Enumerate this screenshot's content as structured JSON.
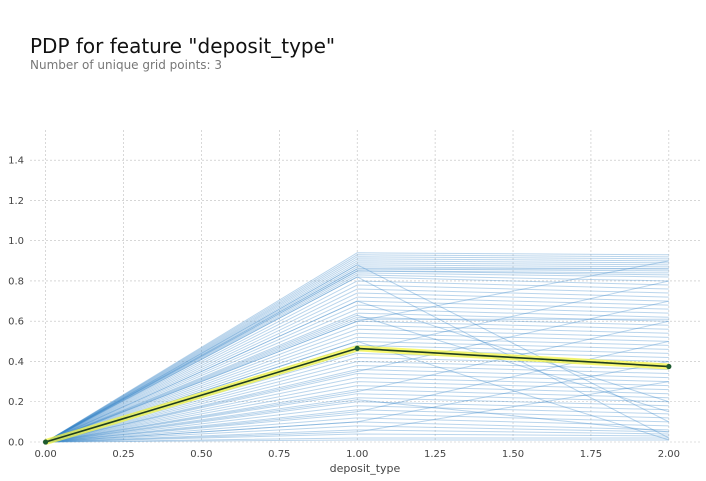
{
  "chart_data": {
    "type": "line",
    "title": "PDP for feature \"deposit_type\"",
    "subtitle": "Number of unique grid points: 3",
    "xlabel": "deposit_type",
    "ylabel": "",
    "xlim": [
      -0.05,
      2.1
    ],
    "ylim": [
      0,
      1.55
    ],
    "x_ticks": [
      "0.00",
      "0.25",
      "0.50",
      "0.75",
      "1.00",
      "1.25",
      "1.50",
      "1.75",
      "2.00"
    ],
    "y_ticks": [
      "0.0",
      "0.2",
      "0.4",
      "0.6",
      "0.8",
      "1.0",
      "1.2",
      "1.4"
    ],
    "grid": true,
    "x": [
      0,
      1,
      2
    ],
    "pdp_series": {
      "values": [
        0.0,
        0.465,
        0.375
      ]
    },
    "ice_lines": [
      [
        0,
        0.94,
        0.93
      ],
      [
        0,
        0.93,
        0.92
      ],
      [
        0,
        0.92,
        0.91
      ],
      [
        0,
        0.91,
        0.9
      ],
      [
        0,
        0.9,
        0.89
      ],
      [
        0,
        0.89,
        0.88
      ],
      [
        0,
        0.88,
        0.87
      ],
      [
        0,
        0.87,
        0.86
      ],
      [
        0,
        0.86,
        0.86
      ],
      [
        0,
        0.86,
        0.85
      ],
      [
        0,
        0.85,
        0.84
      ],
      [
        0,
        0.85,
        0.83
      ],
      [
        0,
        0.84,
        0.82
      ],
      [
        0,
        0.83,
        0.8
      ],
      [
        0,
        0.82,
        0.78
      ],
      [
        0,
        0.82,
        0.02
      ],
      [
        0,
        0.8,
        0.76
      ],
      [
        0,
        0.78,
        0.74
      ],
      [
        0,
        0.76,
        0.72
      ],
      [
        0,
        0.74,
        0.7
      ],
      [
        0,
        0.72,
        0.68
      ],
      [
        0,
        0.7,
        0.66
      ],
      [
        0,
        0.68,
        0.64
      ],
      [
        0,
        0.66,
        0.62
      ],
      [
        0,
        0.64,
        0.6
      ],
      [
        0,
        0.63,
        0.15
      ],
      [
        0,
        0.62,
        0.58
      ],
      [
        0,
        0.61,
        0.61
      ],
      [
        0,
        0.6,
        0.56
      ],
      [
        0,
        0.58,
        0.54
      ],
      [
        0,
        0.56,
        0.52
      ],
      [
        0,
        0.54,
        0.5
      ],
      [
        0,
        0.52,
        0.48
      ],
      [
        0,
        0.5,
        0.46
      ],
      [
        0,
        0.48,
        0.44
      ],
      [
        0,
        0.46,
        0.42
      ],
      [
        0,
        0.44,
        0.4
      ],
      [
        0,
        0.42,
        0.38
      ],
      [
        0,
        0.4,
        0.36
      ],
      [
        0,
        0.38,
        0.34
      ],
      [
        0,
        0.36,
        0.32
      ],
      [
        0,
        0.34,
        0.3
      ],
      [
        0,
        0.32,
        0.28
      ],
      [
        0,
        0.3,
        0.26
      ],
      [
        0,
        0.28,
        0.24
      ],
      [
        0,
        0.26,
        0.22
      ],
      [
        0,
        0.24,
        0.2
      ],
      [
        0,
        0.22,
        0.18
      ],
      [
        0,
        0.21,
        0.05
      ],
      [
        0,
        0.2,
        0.16
      ],
      [
        0,
        0.18,
        0.14
      ],
      [
        0,
        0.16,
        0.12
      ],
      [
        0,
        0.14,
        0.1
      ],
      [
        0,
        0.12,
        0.08
      ],
      [
        0,
        0.1,
        0.06
      ],
      [
        0,
        0.08,
        0.05
      ],
      [
        0,
        0.06,
        0.04
      ],
      [
        0,
        0.04,
        0.03
      ],
      [
        0,
        0.02,
        0.02
      ],
      [
        0,
        0.01,
        0.01
      ],
      [
        0,
        0.6,
        0.9
      ],
      [
        0,
        0.45,
        0.8
      ],
      [
        0,
        0.35,
        0.7
      ],
      [
        0,
        0.25,
        0.6
      ],
      [
        0,
        0.15,
        0.5
      ],
      [
        0,
        0.1,
        0.4
      ],
      [
        0,
        0.05,
        0.3
      ],
      [
        0,
        0.88,
        0.1
      ],
      [
        0,
        0.7,
        0.2
      ],
      [
        0,
        0.5,
        0.01
      ]
    ],
    "colors": {
      "ice": "#3a86c8",
      "pdp_fill": "#f5f542",
      "pdp_line": "#1f3d1f",
      "marker": "#1f5b2f"
    }
  }
}
